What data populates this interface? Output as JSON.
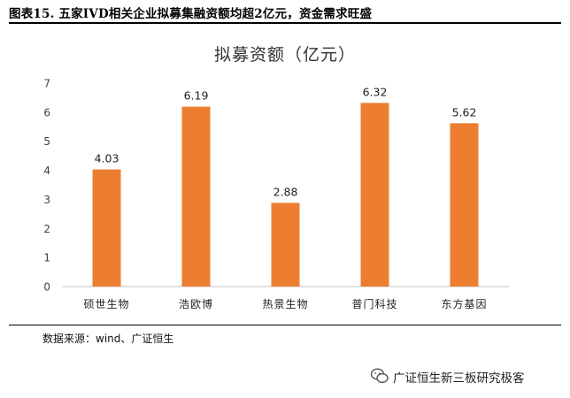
{
  "figure": {
    "title": "图表15. 五家IVD相关企业拟募集融资额均超2亿元，资金需求旺盛"
  },
  "chart_data": {
    "type": "bar",
    "title": "拟募资额（亿元）",
    "categories": [
      "硕世生物",
      "浩欧博",
      "热景生物",
      "普门科技",
      "东方基因"
    ],
    "values": [
      4.03,
      6.19,
      2.88,
      6.32,
      5.62
    ],
    "value_labels": [
      "4.03",
      "6.19",
      "2.88",
      "6.32",
      "5.62"
    ],
    "ylim": [
      0,
      7
    ],
    "yticks": [
      "0",
      "1",
      "2",
      "3",
      "4",
      "5",
      "6",
      "7"
    ],
    "grid": false,
    "legend": "none",
    "bar_color": "#ED7D31",
    "axis_color": "#BFBFBF"
  },
  "footer": {
    "source": "数据来源：wind、广证恒生"
  },
  "watermark": {
    "text": "广证恒生新三板研究极客",
    "icon": "wechat-icon"
  }
}
